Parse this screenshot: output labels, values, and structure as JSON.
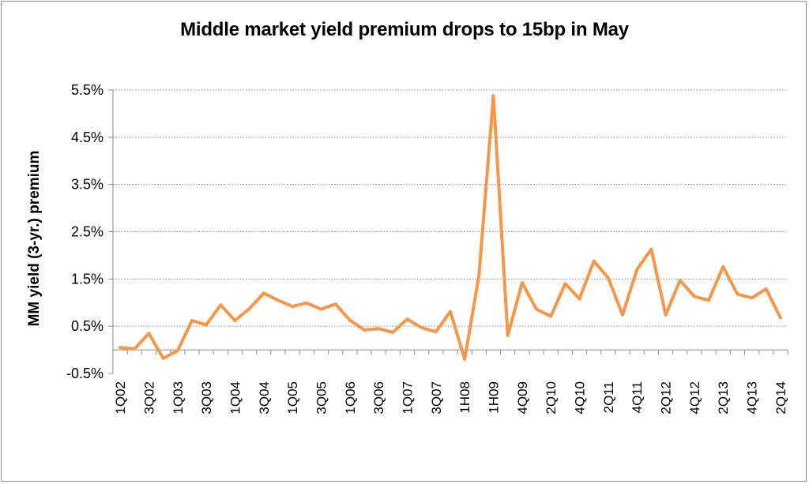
{
  "chart_data": {
    "type": "line",
    "title": "Middle market yield premium drops to 15bp in May",
    "xlabel": "",
    "ylabel": "MM yield (3-yr.) premium",
    "ylim": [
      -0.5,
      5.5
    ],
    "yticks": [
      "5.5%",
      "4.5%",
      "3.5%",
      "2.5%",
      "1.5%",
      "0.5%",
      "-0.5%"
    ],
    "ytick_values": [
      5.5,
      4.5,
      3.5,
      2.5,
      1.5,
      0.5,
      -0.5
    ],
    "grid": "horizontal dotted",
    "line_color": "#f79646",
    "x": [
      "1Q02",
      "2Q02",
      "3Q02",
      "4Q02",
      "1Q03",
      "2Q03",
      "3Q03",
      "4Q03",
      "1Q04",
      "2Q04",
      "3Q04",
      "4Q04",
      "1Q05",
      "2Q05",
      "3Q05",
      "4Q05",
      "1Q06",
      "2Q06",
      "3Q06",
      "4Q06",
      "1Q07",
      "2Q07",
      "3Q07",
      "4Q07",
      "1H08",
      "2H08",
      "1H09",
      "2H09",
      "4Q09",
      "1Q10",
      "2Q10",
      "3Q10",
      "4Q10",
      "1Q11",
      "2Q11",
      "3Q11",
      "4Q11",
      "1Q12",
      "2Q12",
      "3Q12",
      "4Q12",
      "1Q13",
      "2Q13",
      "3Q13",
      "4Q13",
      "1Q14",
      "2Q14"
    ],
    "xtick_labels": [
      "1Q02",
      "3Q02",
      "1Q03",
      "3Q03",
      "1Q04",
      "3Q04",
      "1Q05",
      "3Q05",
      "1Q06",
      "3Q06",
      "1Q07",
      "3Q07",
      "1H08",
      "1H09",
      "4Q09",
      "2Q10",
      "4Q10",
      "2Q11",
      "4Q11",
      "2Q12",
      "4Q12",
      "2Q13",
      "4Q13",
      "2Q14"
    ],
    "values": [
      0.05,
      0.02,
      0.35,
      -0.18,
      -0.02,
      0.62,
      0.53,
      0.95,
      0.62,
      0.87,
      1.2,
      1.05,
      0.92,
      0.99,
      0.86,
      0.97,
      0.63,
      0.42,
      0.45,
      0.37,
      0.65,
      0.47,
      0.38,
      0.81,
      -0.2,
      1.58,
      5.38,
      0.3,
      1.42,
      0.86,
      0.71,
      1.4,
      1.08,
      1.88,
      1.52,
      0.74,
      1.7,
      2.13,
      0.74,
      1.47,
      1.13,
      1.05,
      1.76,
      1.18,
      1.1,
      1.29,
      0.68
    ]
  }
}
